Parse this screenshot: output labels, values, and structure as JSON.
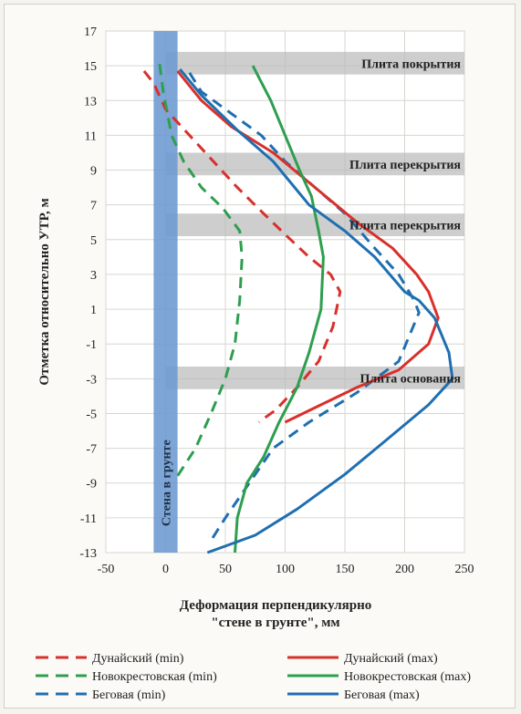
{
  "chart_data": {
    "type": "line",
    "xlabel_line1": "Деформация перпендикулярно",
    "xlabel_line2": "\"стене в грунте\", мм",
    "ylabel": "Отметка относительно УТР, м",
    "xlim": [
      -50,
      250
    ],
    "ylim": [
      -13,
      17
    ],
    "x_ticks": [
      "-50",
      "0",
      "50",
      "100",
      "150",
      "200",
      "250"
    ],
    "y_ticks": [
      "17",
      "15",
      "13",
      "11",
      "9",
      "7",
      "5",
      "3",
      "1",
      "-1",
      "-3",
      "-5",
      "-7",
      "-9",
      "-11",
      "-13"
    ],
    "wall": {
      "label": "Стена в грунте",
      "x_range": [
        -10,
        10
      ],
      "color": "#6f9bd1"
    },
    "slabs": [
      {
        "label": "Плита покрытия",
        "y_range": [
          14.5,
          15.8
        ]
      },
      {
        "label": "Плита перекрытия",
        "y_range": [
          8.7,
          10.0
        ]
      },
      {
        "label": "Плита перекрытия",
        "y_range": [
          5.2,
          6.5
        ]
      },
      {
        "label": "Плита основания",
        "y_range": [
          -3.6,
          -2.3
        ]
      }
    ],
    "series": [
      {
        "name": "Дунайский (min)",
        "color": "#d9302b",
        "dash": true,
        "points": [
          [
            -18,
            14.7
          ],
          [
            -10,
            14
          ],
          [
            0,
            12.5
          ],
          [
            20,
            11
          ],
          [
            40,
            9.5
          ],
          [
            60,
            8
          ],
          [
            82,
            6.5
          ],
          [
            100,
            5.3
          ],
          [
            120,
            4
          ],
          [
            138,
            3
          ],
          [
            146,
            2
          ],
          [
            140,
            0
          ],
          [
            128,
            -2
          ],
          [
            110,
            -3.5
          ],
          [
            92,
            -4.8
          ],
          [
            78,
            -5.5
          ]
        ]
      },
      {
        "name": "Новокрестовская (min)",
        "color": "#2e9e4f",
        "dash": true,
        "points": [
          [
            -5,
            15.1
          ],
          [
            -2,
            13.5
          ],
          [
            5,
            11
          ],
          [
            15,
            9.5
          ],
          [
            30,
            8
          ],
          [
            48,
            6.8
          ],
          [
            62,
            5.5
          ],
          [
            64,
            4
          ],
          [
            62,
            1.5
          ],
          [
            58,
            -1
          ],
          [
            50,
            -3
          ],
          [
            38,
            -5
          ],
          [
            25,
            -7
          ],
          [
            8,
            -8.8
          ]
        ]
      },
      {
        "name": "Беговая (min)",
        "color": "#1f6fb0",
        "dash": true,
        "points": [
          [
            20,
            14.6
          ],
          [
            30,
            13.5
          ],
          [
            60,
            12
          ],
          [
            80,
            11
          ],
          [
            100,
            9.5
          ],
          [
            125,
            8
          ],
          [
            150,
            6.5
          ],
          [
            175,
            4.5
          ],
          [
            195,
            3
          ],
          [
            208,
            1.5
          ],
          [
            212,
            0.8
          ],
          [
            195,
            -2
          ],
          [
            160,
            -3.8
          ],
          [
            120,
            -5.5
          ],
          [
            90,
            -7
          ],
          [
            70,
            -9
          ],
          [
            50,
            -11
          ],
          [
            38,
            -12.3
          ]
        ]
      },
      {
        "name": "Дунайский (max)",
        "color": "#d9302b",
        "dash": false,
        "points": [
          [
            10,
            14.7
          ],
          [
            30,
            13
          ],
          [
            55,
            11.5
          ],
          [
            90,
            10
          ],
          [
            125,
            8
          ],
          [
            160,
            6
          ],
          [
            190,
            4.5
          ],
          [
            210,
            3
          ],
          [
            220,
            2
          ],
          [
            228,
            0.5
          ],
          [
            220,
            -1
          ],
          [
            195,
            -2.5
          ],
          [
            160,
            -3.5
          ],
          [
            130,
            -4.5
          ],
          [
            100,
            -5.5
          ]
        ]
      },
      {
        "name": "Новокрестовская (max)",
        "color": "#2e9e4f",
        "dash": false,
        "points": [
          [
            73,
            15
          ],
          [
            88,
            13
          ],
          [
            100,
            11
          ],
          [
            112,
            9
          ],
          [
            122,
            7.5
          ],
          [
            128,
            5.5
          ],
          [
            132,
            4
          ],
          [
            130,
            1
          ],
          [
            120,
            -1.5
          ],
          [
            110,
            -3.5
          ],
          [
            95,
            -5.5
          ],
          [
            82,
            -7.5
          ],
          [
            68,
            -9
          ],
          [
            60,
            -11
          ],
          [
            58,
            -13
          ]
        ]
      },
      {
        "name": "Беговая (max)",
        "color": "#1f6fb0",
        "dash": false,
        "points": [
          [
            12,
            14.8
          ],
          [
            30,
            13.3
          ],
          [
            60,
            11.3
          ],
          [
            90,
            9.5
          ],
          [
            120,
            7
          ],
          [
            150,
            5.5
          ],
          [
            175,
            4
          ],
          [
            200,
            2
          ],
          [
            212,
            1.5
          ],
          [
            225,
            0.5
          ],
          [
            237,
            -1.5
          ],
          [
            240,
            -3
          ],
          [
            220,
            -4.5
          ],
          [
            185,
            -6.5
          ],
          [
            150,
            -8.5
          ],
          [
            110,
            -10.5
          ],
          [
            75,
            -12
          ],
          [
            35,
            -13
          ]
        ]
      }
    ],
    "legend_position": "bottom"
  }
}
